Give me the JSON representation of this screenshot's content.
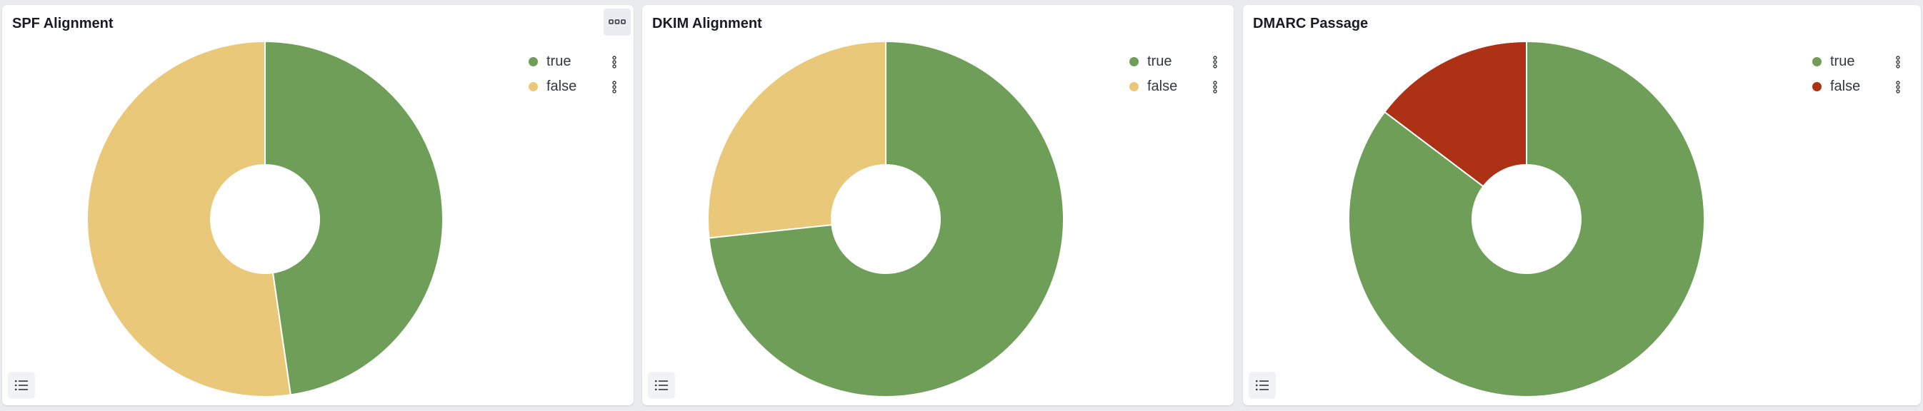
{
  "panels": [
    {
      "title": "SPF Alignment",
      "chart_data": {
        "type": "pie",
        "title": "SPF Alignment",
        "donut": true,
        "legend_position": "top-right",
        "categories": [
          "true",
          "false"
        ],
        "values": [
          47.7,
          52.3
        ],
        "colors": [
          "#6f9e58",
          "#e9c979"
        ]
      }
    },
    {
      "title": "DKIM Alignment",
      "chart_data": {
        "type": "pie",
        "title": "DKIM Alignment",
        "donut": true,
        "legend_position": "top-right",
        "categories": [
          "true",
          "false"
        ],
        "values": [
          73.3,
          26.7
        ],
        "colors": [
          "#6f9e58",
          "#e9c979"
        ]
      }
    },
    {
      "title": "DMARC Passage",
      "chart_data": {
        "type": "pie",
        "title": "DMARC Passage",
        "donut": true,
        "legend_position": "top-right",
        "categories": [
          "true",
          "false"
        ],
        "values": [
          85.3,
          14.7
        ],
        "colors": [
          "#6f9e58",
          "#ad3215"
        ]
      }
    }
  ]
}
